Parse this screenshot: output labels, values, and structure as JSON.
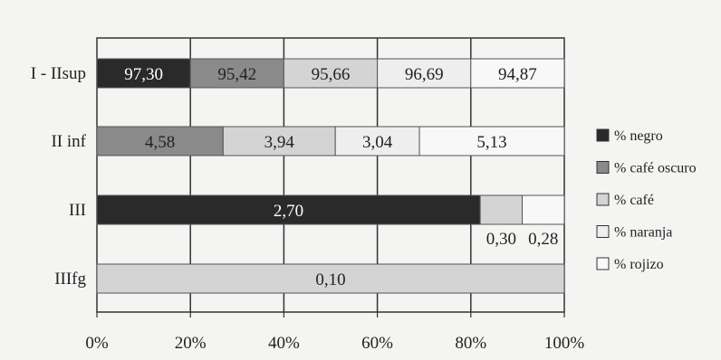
{
  "colors": {
    "negro": "#2a2a2a",
    "cafe_oscuro": "#8a8a8a",
    "cafe": "#d4d4d4",
    "naranja": "#eeeeee",
    "rojizo": "#f8f8f8",
    "grid": "#333333",
    "background": "#f4f4f2"
  },
  "chart_data": {
    "type": "bar",
    "orientation": "horizontal",
    "stacked": true,
    "percent_axis": true,
    "title": "",
    "xlabel": "",
    "ylabel": "",
    "xlim": [
      0,
      100
    ],
    "x_ticks": [
      "0%",
      "20%",
      "40%",
      "60%",
      "80%",
      "100%"
    ],
    "grid": true,
    "legend_position": "right",
    "categories": [
      "I - IIsup",
      "II inf",
      "III",
      "IIIfg"
    ],
    "series": [
      {
        "name": "% negro",
        "color_key": "negro",
        "labels": [
          "97,30",
          "",
          "2,70",
          ""
        ]
      },
      {
        "name": "% café oscuro",
        "color_key": "cafe_oscuro",
        "labels": [
          "95,42",
          "4,58",
          "",
          ""
        ]
      },
      {
        "name": "% café",
        "color_key": "cafe",
        "labels": [
          "95,66",
          "3,94",
          "0,30",
          "0,10"
        ]
      },
      {
        "name": "% naranja",
        "color_key": "naranja",
        "labels": [
          "96,69",
          "3,04",
          "",
          ""
        ]
      },
      {
        "name": "% rojizo",
        "color_key": "rojizo",
        "labels": [
          "94,87",
          "5,13",
          "0,28",
          ""
        ]
      }
    ],
    "shares_percent": [
      [
        20,
        20,
        20,
        20,
        20
      ],
      [
        0,
        27,
        24,
        18,
        31
      ],
      [
        82,
        0,
        9,
        0,
        9
      ],
      [
        0,
        0,
        100,
        0,
        0
      ]
    ]
  }
}
